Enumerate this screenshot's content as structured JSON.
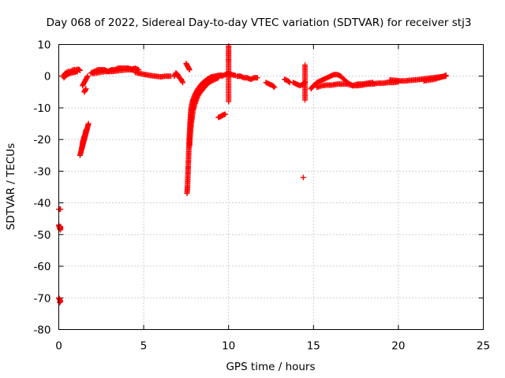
{
  "chart_data": {
    "type": "scatter",
    "title": "Day 068 of 2022, Sidereal Day-to-day VTEC variation (SDTVAR) for receiver stj3",
    "xlabel": "GPS time / hours",
    "ylabel": "SDTVAR / TECUs",
    "xlim": [
      0,
      25
    ],
    "ylim": [
      -80,
      10
    ],
    "xticks": [
      0,
      5,
      10,
      15,
      20,
      25
    ],
    "yticks": [
      10,
      0,
      -10,
      -20,
      -30,
      -40,
      -50,
      -60,
      -70,
      -80
    ],
    "xtick_labels": [
      "0",
      "5",
      "10",
      "15",
      "20",
      "25"
    ],
    "ytick_labels": [
      "10",
      "0",
      "-10",
      "-20",
      "-30",
      "-40",
      "-50",
      "-60",
      "-70",
      "-80"
    ],
    "grid": true,
    "marker": "plus",
    "series": [
      {
        "name": "SDTVAR",
        "color": "#ff0000",
        "segments": [
          {
            "x": [
              0.0,
              0.05,
              0.1
            ],
            "y": [
              -42,
              -42,
              -42
            ]
          },
          {
            "x": [
              0.0,
              0.05,
              0.1,
              0.1
            ],
            "y": [
              -47,
              -48,
              -48.5,
              -47.5
            ]
          },
          {
            "x": [
              0.0,
              0.05,
              0.1,
              0.05
            ],
            "y": [
              -70,
              -70.5,
              -71,
              -71.5
            ]
          },
          {
            "x": [
              0.25,
              0.4,
              0.55,
              0.7,
              0.85,
              1.0,
              1.15,
              1.25
            ],
            "y": [
              0,
              1,
              1.5,
              1.5,
              2,
              2,
              2.2,
              1.8
            ]
          },
          {
            "x": [
              0.3,
              0.5,
              0.7,
              0.9,
              1.1
            ],
            "y": [
              -0.5,
              0.5,
              1,
              1.2,
              1.5
            ]
          },
          {
            "x": [
              1.25,
              1.3,
              1.35,
              1.4,
              1.45,
              1.5,
              1.55,
              1.6,
              1.65,
              1.7,
              1.75
            ],
            "y": [
              -25,
              -24,
              -23,
              -22,
              -21,
              -20,
              -19,
              -18,
              -17,
              -16,
              -15
            ]
          },
          {
            "x": [
              1.35,
              1.4,
              1.45,
              1.5,
              1.55,
              1.6
            ],
            "y": [
              -23,
              -21,
              -20,
              -19,
              -18.5,
              -17
            ]
          },
          {
            "x": [
              1.4,
              1.5,
              1.6,
              1.7
            ],
            "y": [
              -3,
              -2,
              -1,
              0
            ]
          },
          {
            "x": [
              1.5,
              1.55,
              1.6
            ],
            "y": [
              -5,
              -4.5,
              -4
            ]
          },
          {
            "x": [
              1.9,
              2.1,
              2.3,
              2.5,
              2.7,
              2.9,
              3.1,
              3.3,
              3.5,
              3.7,
              3.9,
              4.1,
              4.3,
              4.5,
              4.7
            ],
            "y": [
              1,
              1.5,
              2,
              2,
              2,
              1.5,
              2,
              2,
              2.5,
              2.5,
              2.5,
              2.5,
              2.2,
              2.5,
              2
            ]
          },
          {
            "x": [
              2.0,
              2.4,
              2.8,
              3.2,
              3.6,
              4.0,
              4.4
            ],
            "y": [
              0.8,
              1.2,
              1.5,
              1.5,
              1.8,
              2,
              2
            ]
          },
          {
            "x": [
              4.5,
              4.8,
              5.1,
              5.4,
              5.7,
              6.0,
              6.3,
              6.6
            ],
            "y": [
              1.2,
              0.8,
              0.5,
              0.2,
              0,
              -0.2,
              0,
              0
            ]
          },
          {
            "x": [
              6.8,
              6.9,
              7.0,
              7.1,
              7.2,
              7.3
            ],
            "y": [
              0,
              1,
              0.5,
              -0.5,
              -1,
              -2
            ]
          },
          {
            "x": [
              7.5,
              7.6,
              7.7
            ],
            "y": [
              4,
              3,
              2
            ]
          },
          {
            "x": [
              7.55,
              7.58,
              7.6,
              7.62,
              7.64,
              7.66,
              7.68,
              7.7,
              7.72,
              7.74,
              7.76,
              7.78,
              7.8,
              7.85,
              7.9,
              7.95,
              8.0,
              8.1,
              8.2,
              8.3,
              8.4,
              8.5,
              8.6,
              8.7,
              8.8,
              8.9,
              9.0,
              9.2,
              9.4,
              9.6
            ],
            "y": [
              -37,
              -35,
              -32,
              -29,
              -26,
              -23,
              -20,
              -18,
              -16,
              -14,
              -12.5,
              -11,
              -10,
              -8.5,
              -7.5,
              -6.8,
              -6,
              -5,
              -4,
              -3.2,
              -2.6,
              -2,
              -1.6,
              -1.2,
              -0.8,
              -0.5,
              -0.2,
              0,
              0.2,
              0.3
            ]
          },
          {
            "x": [
              7.7,
              7.75,
              7.8,
              7.85,
              7.9,
              8.0,
              8.1,
              8.2,
              8.35,
              8.5,
              8.65,
              8.8,
              9.0,
              9.2,
              9.4
            ],
            "y": [
              -22,
              -18,
              -15,
              -13,
              -11,
              -9,
              -7.5,
              -6.2,
              -5,
              -4,
              -3,
              -2.2,
              -1.5,
              -1,
              -0.5
            ]
          },
          {
            "x": [
              9.4,
              9.5,
              9.6,
              9.7,
              9.8
            ],
            "y": [
              -13,
              -12.8,
              -12.5,
              -12.2,
              -12
            ]
          },
          {
            "x": [
              9.6,
              9.8,
              10.0,
              10.2,
              10.4
            ],
            "y": [
              0,
              0.5,
              0.8,
              0.5,
              0.2
            ]
          },
          {
            "x": [
              10.0,
              10.0,
              10.0,
              10.0
            ],
            "y": [
              9.5,
              6.5,
              3.5,
              -8
            ]
          },
          {
            "x": [
              10.5,
              10.7,
              10.9,
              11.1,
              11.3,
              11.5,
              11.7
            ],
            "y": [
              0,
              0,
              -0.5,
              -0.5,
              -1,
              -0.5,
              -0.5
            ]
          },
          {
            "x": [
              12.2,
              12.4,
              12.6,
              12.7
            ],
            "y": [
              -2,
              -2.5,
              -3,
              -3.5
            ]
          },
          {
            "x": [
              13.3,
              13.5,
              13.6
            ],
            "y": [
              -1,
              -1.5,
              -2
            ]
          },
          {
            "x": [
              13.8,
              14.0,
              14.2,
              14.4,
              14.5
            ],
            "y": [
              -2,
              -2.5,
              -3,
              -2.5,
              -2
            ]
          },
          {
            "x": [
              14.5,
              14.5,
              14.4
            ],
            "y": [
              3.5,
              -7.5,
              -32
            ]
          },
          {
            "x": [
              14.85,
              15.0,
              15.2,
              15.4,
              15.6,
              15.8,
              16.0,
              16.2,
              16.4,
              16.6
            ],
            "y": [
              -4,
              -3,
              -2,
              -1.5,
              -1,
              -0.5,
              0,
              0.5,
              0.5,
              0
            ]
          },
          {
            "x": [
              15.2,
              15.5,
              15.8,
              16.1,
              16.4,
              16.7,
              17.0,
              17.3,
              17.6,
              17.9,
              18.2,
              18.5,
              18.8,
              19.1,
              19.4,
              19.7,
              20.0
            ],
            "y": [
              -3.5,
              -3,
              -2.8,
              -2.8,
              -2.5,
              -2.5,
              -2.5,
              -3,
              -3,
              -2.8,
              -2.5,
              -2.5,
              -2.2,
              -2.2,
              -2,
              -2,
              -1.8
            ]
          },
          {
            "x": [
              16.6,
              16.8,
              17.0,
              17.3,
              17.6,
              17.9,
              18.2,
              18.5
            ],
            "y": [
              0,
              -1,
              -2,
              -3,
              -2.5,
              -2.5,
              -2.2,
              -2
            ]
          },
          {
            "x": [
              19.5,
              19.8,
              20.1,
              20.4,
              20.7,
              21.0,
              21.3,
              21.6,
              21.9,
              22.2,
              22.5,
              22.8
            ],
            "y": [
              -1.2,
              -1.3,
              -1.5,
              -1.5,
              -1.3,
              -1.2,
              -1,
              -0.8,
              -0.6,
              -0.4,
              -0.2,
              0
            ]
          },
          {
            "x": [
              21.5,
              21.8,
              22.1,
              22.4,
              22.6,
              22.8
            ],
            "y": [
              -1.5,
              -1.2,
              -1,
              -0.5,
              -0.2,
              0.3
            ]
          }
        ]
      }
    ]
  }
}
